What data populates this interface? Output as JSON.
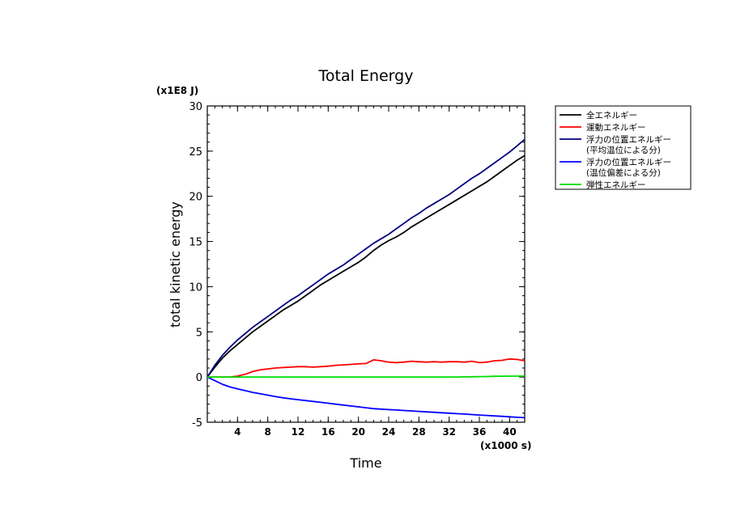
{
  "chart_data": {
    "type": "line",
    "title": "Total Energy",
    "ylabel": "total kinetic energy",
    "xlabel": "Time",
    "y_multiplier": "(x1E8 J)",
    "x_multiplier": "(x1000 s)",
    "xlim": [
      0,
      42
    ],
    "ylim": [
      -5,
      30
    ],
    "x_ticks": [
      4,
      8,
      12,
      16,
      20,
      24,
      28,
      32,
      36,
      40
    ],
    "y_ticks": [
      -5,
      0,
      5,
      10,
      15,
      20,
      25,
      30
    ],
    "legend_position": "right",
    "x": [
      0,
      1,
      2,
      3,
      4,
      5,
      6,
      7,
      8,
      9,
      10,
      11,
      12,
      13,
      14,
      15,
      16,
      17,
      18,
      19,
      20,
      21,
      22,
      23,
      24,
      25,
      26,
      27,
      28,
      29,
      30,
      31,
      32,
      33,
      34,
      35,
      36,
      37,
      38,
      39,
      40,
      41,
      42
    ],
    "series": [
      {
        "name": "全エネルギー",
        "color": "#000000",
        "values": [
          0,
          1.1,
          2.1,
          2.9,
          3.6,
          4.3,
          5.0,
          5.6,
          6.2,
          6.8,
          7.4,
          7.9,
          8.4,
          9.0,
          9.6,
          10.2,
          10.7,
          11.2,
          11.7,
          12.2,
          12.7,
          13.3,
          14.0,
          14.6,
          15.1,
          15.5,
          16.0,
          16.6,
          17.1,
          17.6,
          18.1,
          18.6,
          19.1,
          19.6,
          20.1,
          20.6,
          21.1,
          21.6,
          22.2,
          22.8,
          23.4,
          24.0,
          24.5
        ]
      },
      {
        "name": "運動エネルギー",
        "color": "#ff0000",
        "values": [
          0,
          0,
          0,
          0,
          0.1,
          0.3,
          0.6,
          0.8,
          0.9,
          1.0,
          1.05,
          1.1,
          1.15,
          1.15,
          1.1,
          1.15,
          1.2,
          1.3,
          1.35,
          1.4,
          1.45,
          1.5,
          1.9,
          1.8,
          1.65,
          1.6,
          1.65,
          1.75,
          1.7,
          1.65,
          1.7,
          1.65,
          1.7,
          1.7,
          1.65,
          1.75,
          1.6,
          1.65,
          1.8,
          1.85,
          2.0,
          1.95,
          1.8
        ]
      },
      {
        "name": "浮力の位置エネルギー",
        "name_line2": "(平均温位による分)",
        "color": "#000080",
        "values": [
          0,
          1.3,
          2.4,
          3.3,
          4.1,
          4.8,
          5.5,
          6.1,
          6.7,
          7.3,
          7.9,
          8.5,
          9.0,
          9.6,
          10.2,
          10.8,
          11.4,
          11.9,
          12.4,
          13.0,
          13.6,
          14.2,
          14.8,
          15.3,
          15.8,
          16.4,
          17.0,
          17.6,
          18.1,
          18.7,
          19.2,
          19.7,
          20.2,
          20.8,
          21.4,
          22.0,
          22.5,
          23.1,
          23.7,
          24.3,
          24.9,
          25.6,
          26.3
        ]
      },
      {
        "name": "浮力の位置エネルギー",
        "name_line2": "(温位偏差による分)",
        "color": "#0000ff",
        "values": [
          0,
          -0.4,
          -0.8,
          -1.1,
          -1.3,
          -1.5,
          -1.7,
          -1.85,
          -2.0,
          -2.15,
          -2.3,
          -2.4,
          -2.5,
          -2.6,
          -2.7,
          -2.8,
          -2.9,
          -3.0,
          -3.1,
          -3.2,
          -3.3,
          -3.4,
          -3.5,
          -3.55,
          -3.6,
          -3.65,
          -3.7,
          -3.75,
          -3.8,
          -3.85,
          -3.9,
          -3.95,
          -4.0,
          -4.05,
          -4.1,
          -4.15,
          -4.2,
          -4.25,
          -4.3,
          -4.35,
          -4.4,
          -4.45,
          -4.5
        ]
      },
      {
        "name": "弾性エネルギー",
        "color": "#00dd00",
        "values": [
          0,
          0,
          0,
          0,
          0,
          0,
          0,
          0,
          0,
          0,
          0,
          0,
          0,
          0,
          0,
          0,
          0,
          0,
          0,
          0,
          0,
          0,
          0,
          0,
          0,
          0,
          0,
          0,
          0,
          0,
          0,
          0,
          0,
          0,
          0.02,
          0.03,
          0.05,
          0.06,
          0.08,
          0.09,
          0.1,
          0.1,
          0.1
        ]
      }
    ]
  }
}
